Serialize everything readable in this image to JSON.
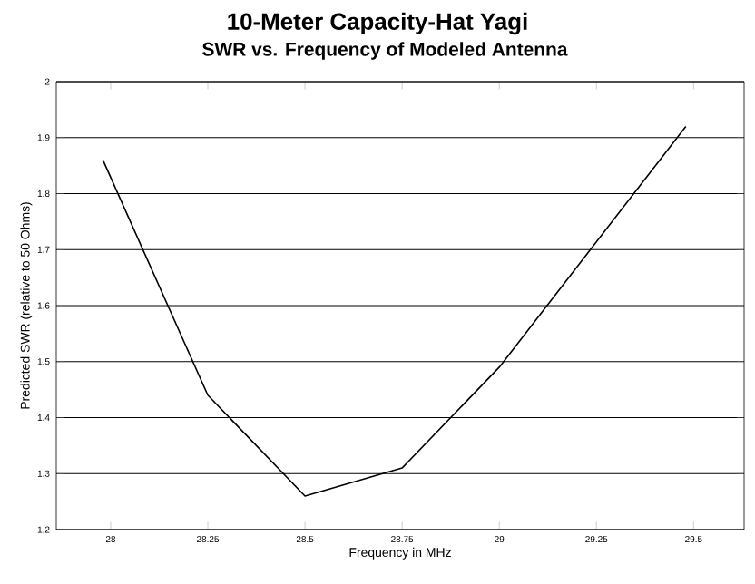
{
  "chart_data": {
    "type": "line",
    "title": "10-Meter Capacity-Hat Yagi",
    "subtitle": "SWR vs. Frequency of Modeled Antenna",
    "xlabel": "Frequency in MHz",
    "ylabel": "Predicted SWR (relative to 50 Ohms)",
    "x": [
      27.98,
      28.25,
      28.5,
      28.75,
      29,
      29.48
    ],
    "series": [
      {
        "color": "#000000",
        "values": [
          1.86,
          1.44,
          1.26,
          1.31,
          1.49,
          1.92
        ]
      }
    ],
    "xlim": [
      27.86,
      29.63
    ],
    "xticks": [
      28,
      28.25,
      28.5,
      28.75,
      29,
      29.25,
      29.5
    ],
    "ylim": [
      1.2,
      2
    ],
    "yticks": [
      1.2,
      1.3,
      1.4,
      1.5,
      1.6,
      1.7,
      1.8,
      1.9,
      2
    ],
    "grid": "y",
    "marker": "none",
    "line_style": "solid"
  }
}
